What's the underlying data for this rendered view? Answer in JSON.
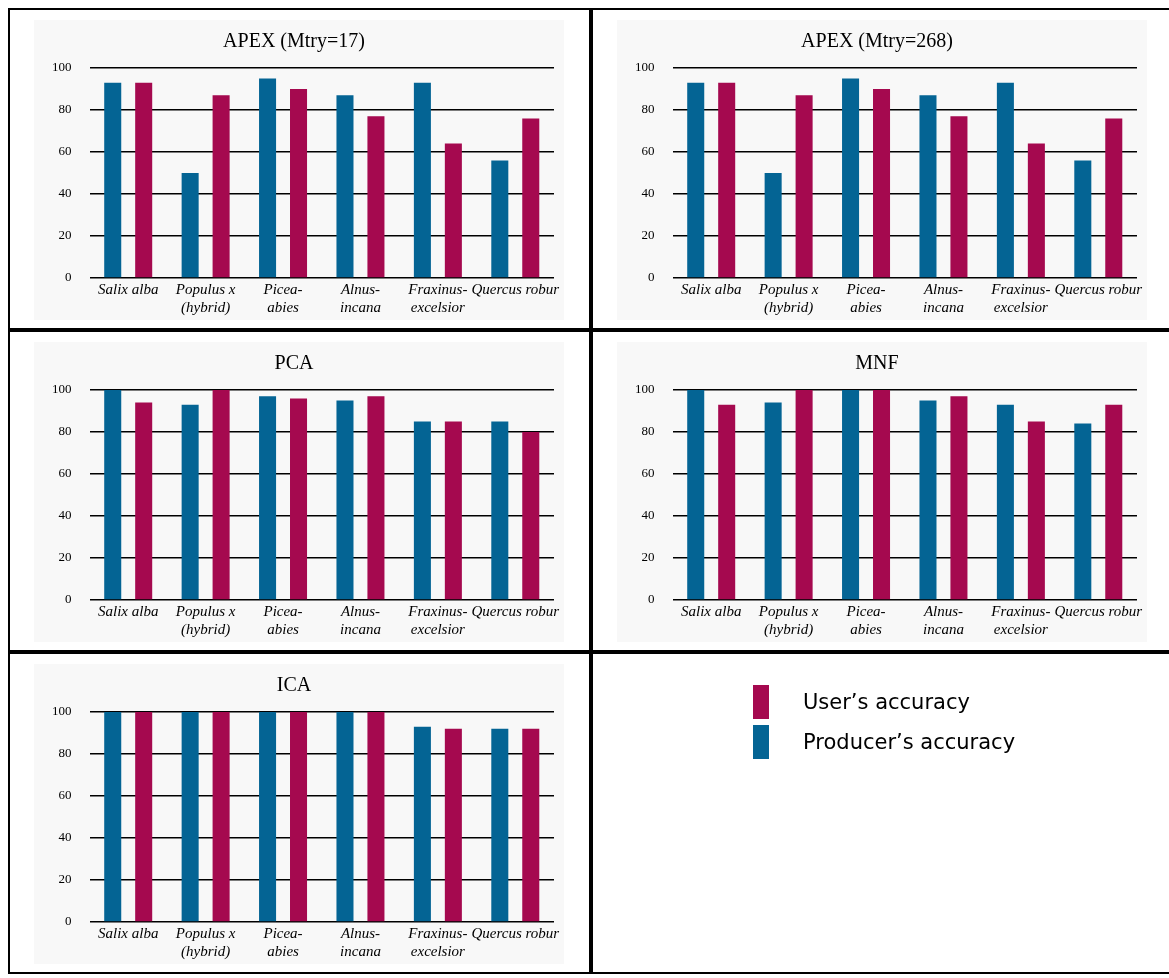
{
  "chart_data": [
    {
      "type": "bar",
      "title": "APEX (Mtry=17)",
      "categories": [
        "Salix alba",
        "Populus x (hybrid)",
        "Picea-abies",
        "Alnus-incana",
        "Fraxinus-excelsior",
        "Quercus robur"
      ],
      "series": [
        {
          "name": "User’s accuracy",
          "color": "#a5094f",
          "values": [
            93,
            87,
            90,
            77,
            64,
            76
          ]
        },
        {
          "name": "Producer’s accuracy",
          "color": "#046494",
          "values": [
            93,
            50,
            95,
            87,
            93,
            56
          ]
        }
      ],
      "ylim": [
        0,
        100
      ],
      "yticks": [
        0,
        20,
        40,
        60,
        80,
        100
      ],
      "grid": "y",
      "legend": "right"
    },
    {
      "type": "bar",
      "title": "APEX (Mtry=268)",
      "categories": [
        "Salix alba",
        "Populus x (hybrid)",
        "Picea-abies",
        "Alnus-incana",
        "Fraxinus-excelsior",
        "Quercus robur"
      ],
      "series": [
        {
          "color": "#a5094f",
          "values": [
            93,
            87,
            90,
            77,
            64,
            76
          ]
        },
        {
          "color": "#046494",
          "values": [
            93,
            50,
            95,
            87,
            93,
            56
          ]
        }
      ],
      "ylim": [
        0,
        100
      ],
      "yticks": [
        0,
        20,
        40,
        60,
        80,
        100
      ],
      "grid": "y"
    },
    {
      "type": "bar",
      "title": "PCA",
      "categories": [
        "Salix alba",
        "Populus x (hybrid)",
        "Picea-abies",
        "Alnus-incana",
        "Fraxinus-excelsior",
        "Quercus robur"
      ],
      "series": [
        {
          "color": "#a5094f",
          "values": [
            94,
            100,
            96,
            97,
            85,
            80
          ]
        },
        {
          "color": "#046494",
          "values": [
            100,
            93,
            97,
            95,
            85,
            85
          ]
        }
      ],
      "ylim": [
        0,
        100
      ],
      "yticks": [
        0,
        20,
        40,
        60,
        80,
        100
      ],
      "grid": "y"
    },
    {
      "type": "bar",
      "title": "MNF",
      "categories": [
        "Salix alba",
        "Populus x (hybrid)",
        "Picea-abies",
        "Alnus-incana",
        "Fraxinus-excelsior",
        "Quercus robur"
      ],
      "series": [
        {
          "color": "#a5094f",
          "values": [
            93,
            100,
            100,
            97,
            85,
            93
          ]
        },
        {
          "color": "#046494",
          "values": [
            100,
            94,
            100,
            95,
            93,
            84
          ]
        }
      ],
      "ylim": [
        0,
        100
      ],
      "yticks": [
        0,
        20,
        40,
        60,
        80,
        100
      ],
      "grid": "y"
    },
    {
      "type": "bar",
      "title": "ICA",
      "categories": [
        "Salix alba",
        "Populus x (hybrid)",
        "Picea-abies",
        "Alnus-incana",
        "Fraxinus-excelsior",
        "Quercus robur"
      ],
      "series": [
        {
          "color": "#a5094f",
          "values": [
            100,
            100,
            100,
            100,
            92,
            92
          ]
        },
        {
          "color": "#046494",
          "values": [
            100,
            100,
            100,
            100,
            93,
            92
          ]
        }
      ],
      "ylim": [
        0,
        100
      ],
      "yticks": [
        0,
        20,
        40,
        60,
        80,
        100
      ],
      "grid": "y"
    }
  ]
}
